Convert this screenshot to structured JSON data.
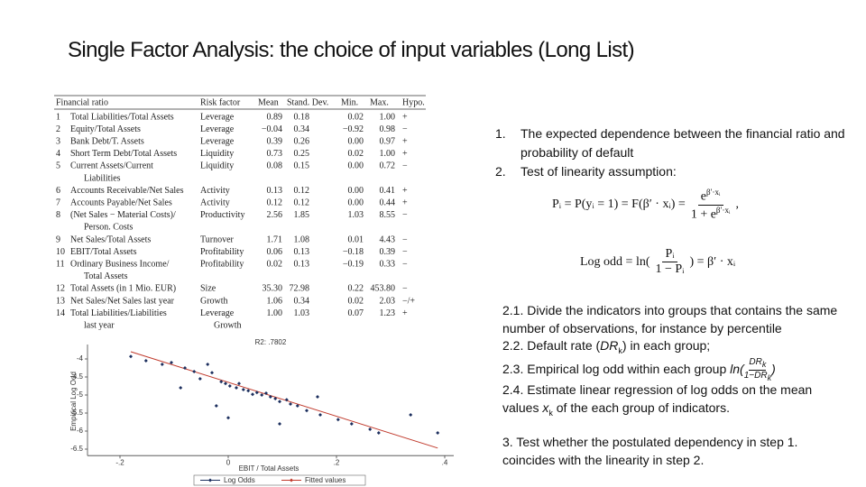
{
  "title": "Single Factor Analysis: the choice of input variables (Long List)",
  "table": {
    "headers": [
      "Financial ratio",
      "Risk factor",
      "Mean",
      "Stand. Dev.",
      "Min.",
      "Max.",
      "Hypo."
    ],
    "rows": [
      [
        "1",
        "Total Liabilities/Total Assets",
        "Leverage",
        "0.89",
        "0.18",
        "0.02",
        "1.00",
        "+"
      ],
      [
        "2",
        "Equity/Total Assets",
        "Leverage",
        "−0.04",
        "0.34",
        "−0.92",
        "0.98",
        "−"
      ],
      [
        "3",
        "Bank Debt/T. Assets",
        "Leverage",
        "0.39",
        "0.26",
        "0.00",
        "0.97",
        "+"
      ],
      [
        "4",
        "Short Term Debt/Total Assets",
        "Liquidity",
        "0.73",
        "0.25",
        "0.02",
        "1.00",
        "+"
      ],
      [
        "5",
        [
          "Current Assets/Current",
          "Liabilities"
        ],
        "Liquidity",
        "0.08",
        "0.15",
        "0.00",
        "0.72",
        "−"
      ],
      [
        "6",
        "Accounts Receivable/Net Sales",
        "Activity",
        "0.13",
        "0.12",
        "0.00",
        "0.41",
        "+"
      ],
      [
        "7",
        "Accounts Payable/Net Sales",
        "Activity",
        "0.12",
        "0.12",
        "0.00",
        "0.44",
        "+"
      ],
      [
        "8",
        [
          "(Net Sales − Material Costs)/",
          "Person. Costs"
        ],
        "Productivity",
        "2.56",
        "1.85",
        "1.03",
        "8.55",
        "−"
      ],
      [
        "9",
        "Net Sales/Total Assets",
        "Turnover",
        "1.71",
        "1.08",
        "0.01",
        "4.43",
        "−"
      ],
      [
        "10",
        "EBIT/Total Assets",
        "Profitability",
        "0.06",
        "0.13",
        "−0.18",
        "0.39",
        "−"
      ],
      [
        "11",
        [
          "Ordinary Business Income/",
          "Total Assets"
        ],
        "Profitability",
        "0.02",
        "0.13",
        "−0.19",
        "0.33",
        "−"
      ],
      [
        "12",
        "Total Assets (in 1 Mio. EUR)",
        "Size",
        "35.30",
        "72.98",
        "0.22",
        "453.80",
        "−"
      ],
      [
        "13",
        "Net Sales/Net Sales last year",
        "Growth",
        "1.06",
        "0.34",
        "0.02",
        "2.03",
        "−/+"
      ],
      [
        "14",
        [
          "Total Liabilities/Liabilities",
          "last year"
        ],
        [
          "Leverage",
          "Growth"
        ],
        "1.00",
        "1.03",
        "0.07",
        "1.23",
        "+"
      ]
    ]
  },
  "chart": {
    "type": "scatter",
    "title": "R2: .7802",
    "x_label": "EBIT / Total Assets",
    "y_label": "Empirical Log Odd",
    "xlim": [
      -0.26,
      0.41
    ],
    "ylim": [
      -6.63,
      -3.75
    ],
    "xticks": [
      {
        "value": -0.2,
        "label": "-.2"
      },
      0,
      {
        "value": 0.2,
        "label": ".2"
      },
      {
        "value": 0.4,
        "label": ".4"
      }
    ],
    "yticks": [
      -4,
      -4.5,
      -5,
      -5.5,
      -6,
      -6.5
    ],
    "series": [
      {
        "name": "Log Odds",
        "color": "#1c2f5e",
        "x": [
          -0.18,
          -0.152,
          -0.122,
          -0.105,
          -0.08,
          -0.063,
          -0.038,
          -0.03,
          -0.052,
          -0.013,
          -0.005,
          0.003,
          0.015,
          0.02,
          0.028,
          0.037,
          0.045,
          0.053,
          0.062,
          0.07,
          0.078,
          0.087,
          0.095,
          0.108,
          0.115,
          0.128,
          0.145,
          0.165,
          0.17,
          0.203,
          0.228,
          0.262,
          0.278,
          0.337,
          0.387,
          -0.088,
          -0.022,
          0.095,
          0.0
        ],
        "values": [
          -3.93,
          -4.05,
          -4.15,
          -4.1,
          -4.25,
          -4.35,
          -4.15,
          -4.38,
          -4.55,
          -4.63,
          -4.68,
          -4.75,
          -4.8,
          -4.68,
          -4.85,
          -4.88,
          -4.98,
          -4.93,
          -5.0,
          -4.95,
          -5.05,
          -5.1,
          -5.18,
          -5.13,
          -5.25,
          -5.3,
          -5.43,
          -5.05,
          -5.55,
          -5.68,
          -5.8,
          -5.95,
          -6.05,
          -5.55,
          -6.05,
          -4.8,
          -5.3,
          -5.8,
          -5.63
        ]
      },
      {
        "name": "Fitted values",
        "color": "#c0392b",
        "x": [
          -0.18,
          0.387
        ],
        "values": [
          -3.8,
          -6.47
        ]
      }
    ]
  },
  "list": [
    {
      "marker": "1.",
      "text": "The expected dependence between the financial ratio and probability of default"
    },
    {
      "marker": "2.",
      "text": "Test of linearity assumption:"
    }
  ],
  "formulas": [
    {
      "left": "Pᵢ = P(yᵢ = 1) = F(β′ · xᵢ) =",
      "num": "e",
      "num_sup": "β′·xᵢ",
      "den": "1 + e",
      "den_sup": "β′·xᵢ",
      "right": ","
    },
    {
      "left": "Log odd = ln(",
      "num": "Pᵢ",
      "den": "1 − Pᵢ",
      "right": ") = β′ · xᵢ"
    }
  ],
  "steps": [
    {
      "text": "2.1. Divide the indicators into groups that contains the same number of observations, for instance by percentile"
    },
    {
      "text": "2.2. Default rate (",
      "math": "DR",
      "sub": "k",
      "after": ") in each group;"
    },
    {
      "text": "2.3. Empirical log odd within each group ",
      "fn": "ln(",
      "num": "DR",
      "num_sub": "k",
      "den": "1−DR",
      "den_sub": "k",
      "close": ")"
    },
    {
      "text": "2.4. Estimate linear regression of log odds on the mean values ",
      "math": "x",
      "sub": "k",
      "after": " of the each group of indicators."
    },
    {
      "text": "3.   Test whether the postulated dependency in step 1. coincides with the linearity in step 2."
    }
  ]
}
